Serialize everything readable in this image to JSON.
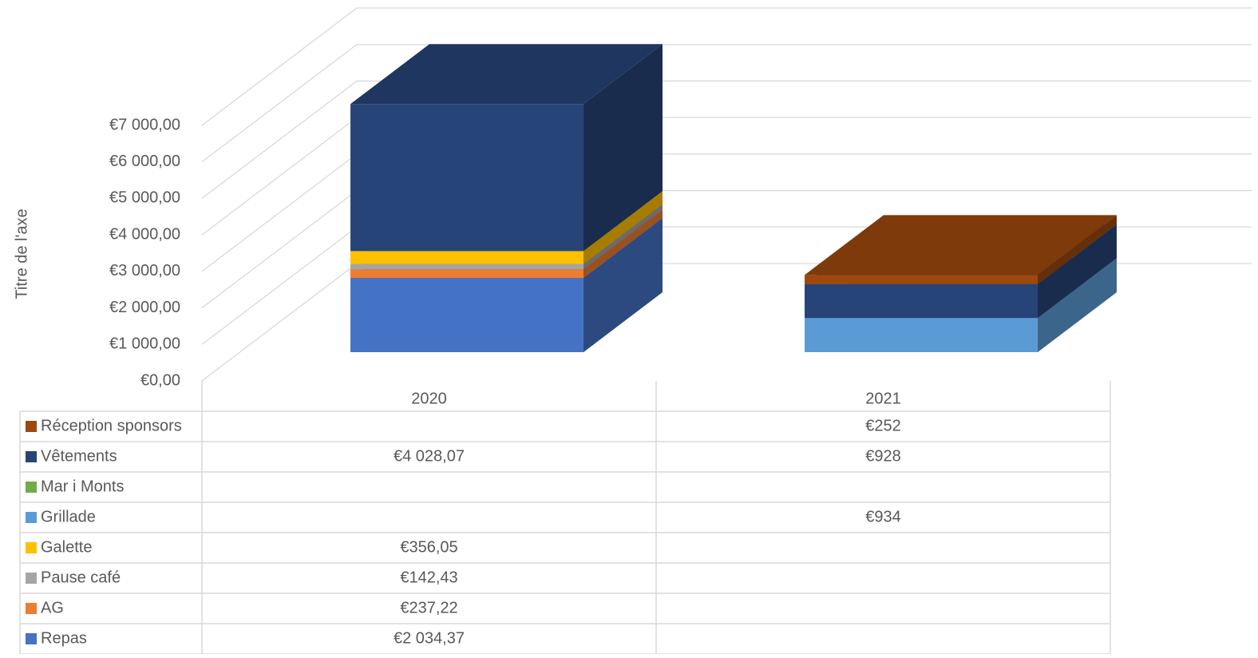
{
  "chart_data": {
    "type": "bar3d_stacked",
    "y_label": "Titre de l'axe",
    "categories": [
      "2020",
      "2021"
    ],
    "ylim": [
      0,
      7000
    ],
    "yticks": [
      {
        "value": 0,
        "label": "€0,00"
      },
      {
        "value": 1000,
        "label": "€1 000,00"
      },
      {
        "value": 2000,
        "label": "€2 000,00"
      },
      {
        "value": 3000,
        "label": "€3 000,00"
      },
      {
        "value": 4000,
        "label": "€4 000,00"
      },
      {
        "value": 5000,
        "label": "€5 000,00"
      },
      {
        "value": 6000,
        "label": "€6 000,00"
      },
      {
        "value": 7000,
        "label": "€7 000,00"
      }
    ],
    "grid": true,
    "series": [
      {
        "name": "Repas",
        "color": "#4472c4",
        "values": [
          2034.37,
          null
        ],
        "value_labels": [
          "€2 034,37",
          null
        ]
      },
      {
        "name": "AG",
        "color": "#ed7d31",
        "values": [
          237.22,
          null
        ],
        "value_labels": [
          "€237,22",
          null
        ]
      },
      {
        "name": "Pause café",
        "color": "#a5a5a5",
        "values": [
          142.43,
          null
        ],
        "value_labels": [
          "€142,43",
          null
        ]
      },
      {
        "name": "Galette",
        "color": "#ffc000",
        "values": [
          356.05,
          null
        ],
        "value_labels": [
          "€356,05",
          null
        ]
      },
      {
        "name": "Grillade",
        "color": "#5b9bd5",
        "values": [
          null,
          934
        ],
        "value_labels": [
          null,
          "€934"
        ]
      },
      {
        "name": "Mar i Monts",
        "color": "#70ad47",
        "values": [
          null,
          null
        ],
        "value_labels": [
          null,
          null
        ]
      },
      {
        "name": "Vêtements",
        "color": "#264478",
        "values": [
          4028.07,
          928
        ],
        "value_labels": [
          "€4 028,07",
          "€928"
        ]
      },
      {
        "name": "Réception sponsors",
        "color": "#9e480e",
        "values": [
          null,
          252
        ],
        "value_labels": [
          null,
          "€252"
        ]
      }
    ]
  }
}
